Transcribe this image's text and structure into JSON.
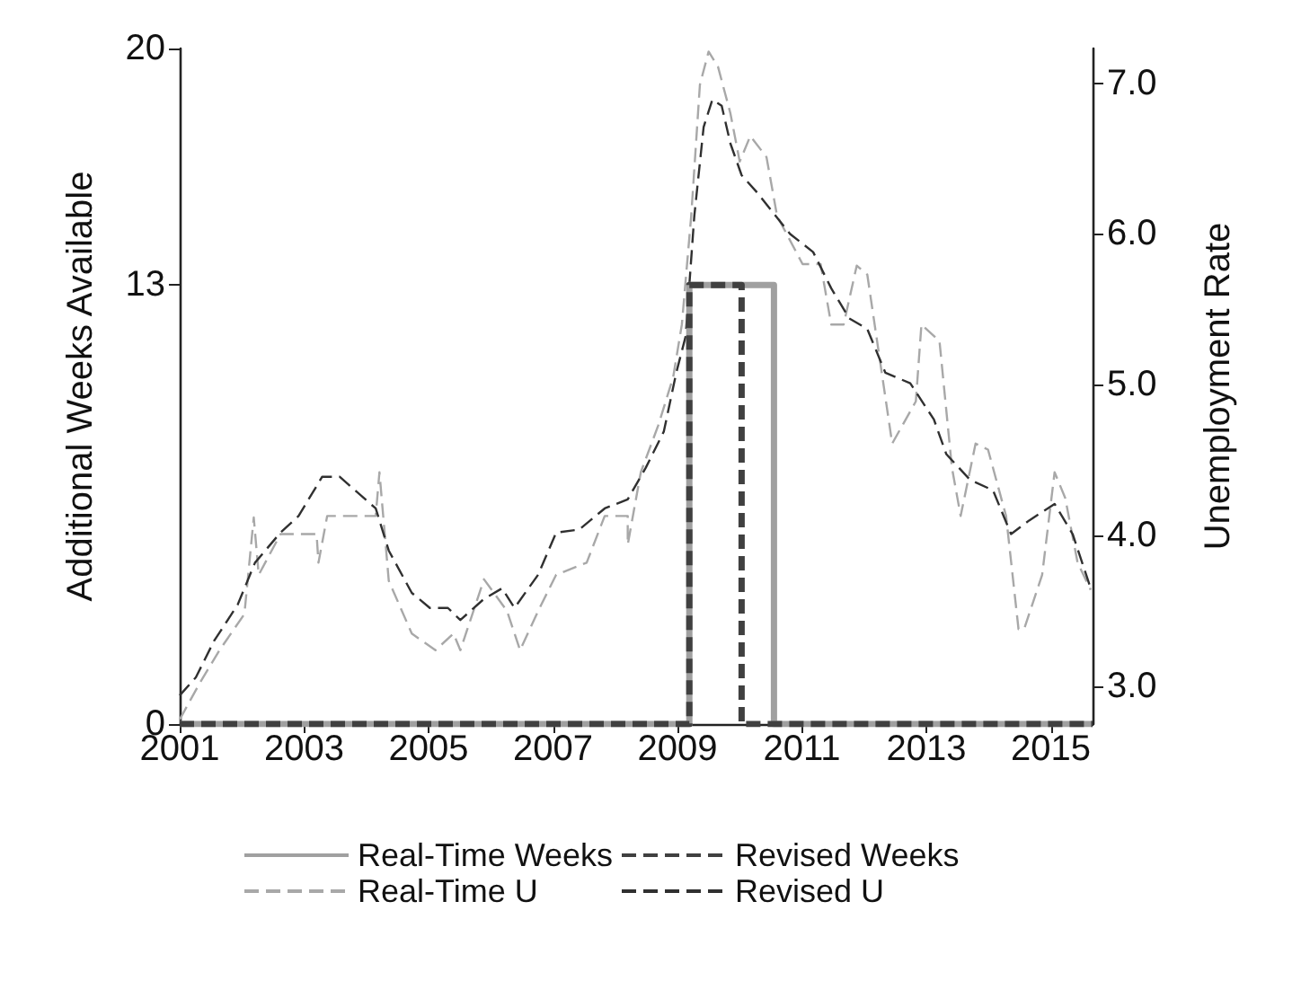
{
  "chart_data": {
    "type": "line",
    "ylabel": "Additional Weeks Available",
    "y2label": "Unemployment Rate",
    "xlim": [
      2001,
      2015.67
    ],
    "xticks": [
      2001,
      2003,
      2005,
      2007,
      2009,
      2011,
      2013,
      2015
    ],
    "ylim": [
      0,
      20
    ],
    "yticks": [
      0,
      13,
      20
    ],
    "y2lim": [
      2.75,
      7.23
    ],
    "y2ticks": [
      {
        "value": 3,
        "label": "3.0"
      },
      {
        "value": 4,
        "label": "4.0"
      },
      {
        "value": 5,
        "label": "5.0"
      },
      {
        "value": 6,
        "label": "6.0"
      },
      {
        "value": 7,
        "label": "7.0"
      }
    ],
    "grid": false,
    "legend": "bottom",
    "marker": "none",
    "series": [
      {
        "name": "Real-Time Weeks",
        "type": "step",
        "color": "#a0a0a0",
        "line_style": "solid",
        "x": [
          2001,
          2009.19,
          2010.55,
          2015.67
        ],
        "values": [
          0,
          13,
          0,
          0
        ]
      },
      {
        "name": "Revised Weeks",
        "type": "step",
        "color": "#404040",
        "line_style": "dashed",
        "x": [
          2001,
          2009.19,
          2010.03,
          2015.67
        ],
        "values": [
          0,
          13,
          0,
          0
        ]
      },
      {
        "name": "Real-Time U",
        "type": "line",
        "axis": "y2",
        "color": "#a8a8a8",
        "line_style": "dashed",
        "x": [
          2001.0,
          2001.32,
          2001.64,
          2002.04,
          2002.19,
          2002.27,
          2002.62,
          2003.2,
          2003.23,
          2003.37,
          2004.15,
          2004.21,
          2004.36,
          2004.73,
          2005.11,
          2005.4,
          2005.51,
          2005.89,
          2006.26,
          2006.47,
          2006.76,
          2007.05,
          2007.54,
          2007.83,
          2008.2,
          2008.2,
          2008.41,
          2008.69,
          2008.93,
          2009.07,
          2009.22,
          2009.36,
          2009.5,
          2009.65,
          2009.85,
          2010.0,
          2010.17,
          2010.43,
          2010.6,
          2011.01,
          2011.3,
          2011.47,
          2011.67,
          2011.88,
          2012.05,
          2012.45,
          2012.83,
          2012.92,
          2013.21,
          2013.41,
          2013.55,
          2013.79,
          2013.99,
          2014.28,
          2014.48,
          2014.57,
          2014.86,
          2015.06,
          2015.23,
          2015.43,
          2015.64
        ],
        "values": [
          2.78,
          3.02,
          3.24,
          3.48,
          4.12,
          3.74,
          4.01,
          4.01,
          3.82,
          4.13,
          4.13,
          4.42,
          3.7,
          3.35,
          3.24,
          3.35,
          3.24,
          3.71,
          3.5,
          3.24,
          3.5,
          3.74,
          3.82,
          4.13,
          4.13,
          3.94,
          4.42,
          4.73,
          5.05,
          5.4,
          6.12,
          6.99,
          7.21,
          7.11,
          6.8,
          6.48,
          6.65,
          6.51,
          6.12,
          5.8,
          5.8,
          5.4,
          5.4,
          5.79,
          5.73,
          4.61,
          4.89,
          5.4,
          5.29,
          4.45,
          4.13,
          4.61,
          4.57,
          4.13,
          3.38,
          3.38,
          3.74,
          4.42,
          4.25,
          3.82,
          3.64
        ]
      },
      {
        "name": "Revised U",
        "type": "line",
        "axis": "y2",
        "color": "#303030",
        "line_style": "dashed",
        "x": [
          2001.0,
          2001.26,
          2001.55,
          2001.93,
          2002.21,
          2002.62,
          2002.91,
          2003.29,
          2003.57,
          2004.15,
          2004.36,
          2004.73,
          2005.02,
          2005.31,
          2005.51,
          2005.89,
          2006.18,
          2006.38,
          2006.76,
          2007.05,
          2007.42,
          2007.83,
          2008.2,
          2008.49,
          2008.78,
          2008.98,
          2009.13,
          2009.27,
          2009.42,
          2009.56,
          2009.71,
          2009.85,
          2010.03,
          2010.29,
          2010.52,
          2010.81,
          2011.18,
          2011.47,
          2011.76,
          2012.05,
          2012.34,
          2012.74,
          2013.12,
          2013.32,
          2013.7,
          2014.07,
          2014.36,
          2014.65,
          2015.06,
          2015.35,
          2015.64
        ],
        "values": [
          2.94,
          3.06,
          3.3,
          3.54,
          3.82,
          4.02,
          4.13,
          4.39,
          4.39,
          4.18,
          3.9,
          3.62,
          3.52,
          3.52,
          3.44,
          3.58,
          3.65,
          3.52,
          3.74,
          4.02,
          4.04,
          4.18,
          4.24,
          4.45,
          4.69,
          5.08,
          5.32,
          6.12,
          6.71,
          6.89,
          6.85,
          6.6,
          6.39,
          6.27,
          6.15,
          6.0,
          5.88,
          5.64,
          5.44,
          5.37,
          5.08,
          5.01,
          4.77,
          4.54,
          4.37,
          4.3,
          4.01,
          4.1,
          4.21,
          4.01,
          3.65
        ]
      }
    ]
  }
}
